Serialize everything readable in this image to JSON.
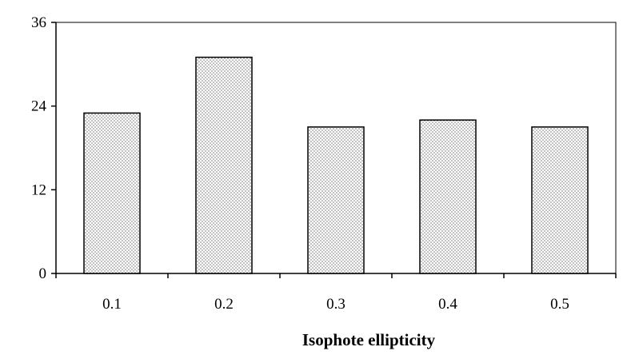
{
  "chart_data": {
    "type": "bar",
    "categories": [
      "0.1",
      "0.2",
      "0.3",
      "0.4",
      "0.5"
    ],
    "values": [
      23,
      31,
      21,
      22,
      21
    ],
    "xlabel": "Isophote ellipticity",
    "ylabel": "",
    "ylim": [
      0,
      36
    ],
    "yticks": [
      "0",
      "12",
      "24",
      "36"
    ],
    "grid": false,
    "legend": "none",
    "colors": {
      "bar_fill": "#ffffff",
      "bar_dots": "#6e6e6e",
      "bar_stroke": "#000000",
      "axis": "#000000"
    }
  }
}
